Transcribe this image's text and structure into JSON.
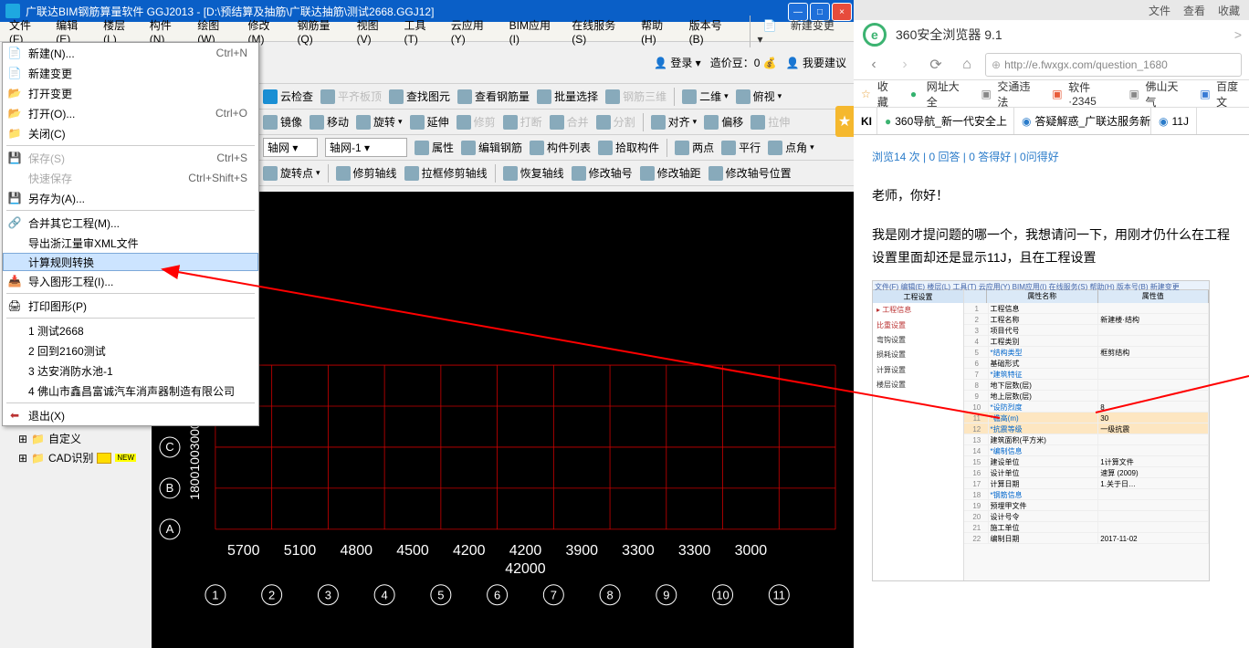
{
  "app": {
    "title": "广联达BIM钢筋算量软件 GGJ2013 - [D:\\预结算及抽筋\\广联达抽筋\\测试2668.GGJ12]",
    "title_icon_color": "#1ea8e0"
  },
  "menubar": {
    "items": [
      "文件(F)",
      "编辑(E)",
      "楼层(L)",
      "构件(N)",
      "绘图(W)",
      "修改(M)",
      "钢筋量(Q)",
      "视图(V)",
      "工具(T)",
      "云应用(Y)",
      "BIM应用(I)",
      "在线服务(S)",
      "帮助(H)",
      "版本号(B)"
    ],
    "new_change_btn": "新建变更"
  },
  "file_menu": {
    "items": [
      {
        "label": "新建(N)...",
        "shortcut": "Ctrl+N",
        "icon": "📄",
        "icon_color": "#4a7bc0"
      },
      {
        "label": "新建变更",
        "shortcut": "",
        "icon": "📄",
        "icon_color": "#4a7bc0"
      },
      {
        "label": "打开变更",
        "shortcut": "",
        "icon": "📂",
        "icon_color": "#e6b85c"
      },
      {
        "label": "打开(O)...",
        "shortcut": "Ctrl+O",
        "icon": "📂",
        "icon_color": "#e6b85c"
      },
      {
        "label": "关闭(C)",
        "shortcut": "",
        "icon": "📁",
        "icon_color": "#e6b85c"
      },
      {
        "sep": true
      },
      {
        "label": "保存(S)",
        "shortcut": "Ctrl+S",
        "icon": "💾",
        "disabled": true
      },
      {
        "label": "快速保存",
        "shortcut": "Ctrl+Shift+S",
        "icon": "",
        "disabled": true
      },
      {
        "label": "另存为(A)...",
        "shortcut": "",
        "icon": "💾",
        "icon_color": "#4a7bc0"
      },
      {
        "sep": true
      },
      {
        "label": "合并其它工程(M)...",
        "shortcut": "",
        "icon": "🔗"
      },
      {
        "label": "导出浙江量审XML文件",
        "shortcut": "",
        "icon": ""
      },
      {
        "label": "计算规则转换",
        "shortcut": "",
        "icon": "",
        "highlighted": true
      },
      {
        "label": "导入图形工程(I)...",
        "shortcut": "",
        "icon": "📥",
        "icon_color": "#3a9b3a"
      },
      {
        "sep": true
      },
      {
        "label": "打印图形(P)",
        "shortcut": "",
        "icon": "🖨"
      },
      {
        "sep": true
      },
      {
        "label": "1 测试2668",
        "shortcut": "",
        "icon": ""
      },
      {
        "label": "2 回到2160测试",
        "shortcut": "",
        "icon": ""
      },
      {
        "label": "3 达安消防水池-1",
        "shortcut": "",
        "icon": ""
      },
      {
        "label": "4 佛山市鑫昌富诚汽车消声器制造有限公司",
        "shortcut": "",
        "icon": ""
      },
      {
        "sep": true
      },
      {
        "label": "退出(X)",
        "shortcut": "",
        "icon": "⬅",
        "icon_color": "#b33"
      }
    ]
  },
  "toolbar_top_right": {
    "login": "登录",
    "login_arrow": "▾",
    "zaodou": "造价豆：0",
    "suggestion": "我要建议",
    "bean_icon": "💰",
    "person_icon": "👤",
    "suggest_icon": "👤"
  },
  "toolbar_rows": [
    [
      {
        "label": "云检查",
        "icon_color": "#1a8fd4"
      },
      {
        "label": "平齐板顶",
        "disabled": true
      },
      {
        "label": "查找图元"
      },
      {
        "label": "查看钢筋量"
      },
      {
        "label": "批量选择"
      },
      {
        "label": "钢筋三维",
        "disabled": true
      },
      {
        "sep": true
      },
      {
        "label": "二维",
        "dropdown": true
      },
      {
        "label": "俯视",
        "dropdown": true
      }
    ],
    [
      {
        "label": "镜像"
      },
      {
        "label": "移动"
      },
      {
        "label": "旋转",
        "dropdown": true
      },
      {
        "label": "延伸"
      },
      {
        "label": "修剪",
        "disabled": true
      },
      {
        "label": "打断",
        "disabled": true
      },
      {
        "label": "合并",
        "disabled": true
      },
      {
        "label": "分割",
        "disabled": true
      },
      {
        "sep": true
      },
      {
        "label": "对齐",
        "dropdown": true
      },
      {
        "label": "偏移"
      },
      {
        "label": "拉伸",
        "disabled": true
      }
    ],
    [
      {
        "input": "轴网",
        "width": 60
      },
      {
        "input": "轴网-1",
        "width": 90
      },
      {
        "label": "属性"
      },
      {
        "label": "编辑钢筋"
      },
      {
        "label": "构件列表"
      },
      {
        "label": "拾取构件"
      },
      {
        "sep": true
      },
      {
        "label": "两点"
      },
      {
        "label": "平行"
      },
      {
        "label": "点角",
        "dropdown": true
      }
    ],
    [
      {
        "label": "旋转点",
        "dropdown": true
      },
      {
        "sep": true
      },
      {
        "label": "修剪轴线"
      },
      {
        "label": "拉框修剪轴线"
      },
      {
        "sep": true
      },
      {
        "label": "恢复轴线"
      },
      {
        "label": "修改轴号"
      },
      {
        "label": "修改轴距"
      },
      {
        "label": "修改轴号位置"
      }
    ]
  ],
  "left_tree": {
    "items": [
      {
        "label": "自定义",
        "icon": "📁"
      },
      {
        "label": "CAD识别",
        "icon": "📁",
        "badge": "NEW"
      }
    ]
  },
  "cad": {
    "grid_color": "#cc0000",
    "axis_text_color": "#ffffff",
    "x_values": [
      "5700",
      "5100",
      "4800",
      "4500",
      "4200",
      "4200",
      "3900",
      "3300",
      "3300",
      "3000"
    ],
    "total_x": "42000",
    "axis_bubbles_x": [
      "1",
      "2",
      "3",
      "4",
      "5",
      "6",
      "7",
      "8",
      "9",
      "10",
      "11"
    ],
    "axis_bubbles_y": [
      "A",
      "B",
      "C"
    ],
    "y_dim_text": "180010030001170"
  },
  "browser": {
    "app_name": "360安全浏览器 9.1",
    "top_right": [
      "文件",
      "查看",
      "收藏"
    ],
    "url": "http://e.fwxgx.com/question_1680",
    "bookmarks": [
      {
        "label": "收藏",
        "icon": "☆",
        "color": "#e8a33d"
      },
      {
        "label": "网址大全",
        "icon": "●",
        "color": "#33b26e"
      },
      {
        "label": "交通违法",
        "icon": "▣",
        "color": "#888"
      },
      {
        "label": "软件·2345",
        "icon": "▣",
        "color": "#e85c3a"
      },
      {
        "label": "佛山天气",
        "icon": "▣",
        "color": "#888"
      },
      {
        "label": "百度文",
        "icon": "▣",
        "color": "#3a7bd5"
      }
    ],
    "tabs": [
      {
        "label": "360导航_新一代安全上",
        "icon": "●",
        "icon_color": "#3cb371"
      },
      {
        "label": "答疑解惑_广联达服务新",
        "icon": "◉",
        "icon_color": "#2b7cca",
        "close": "×"
      },
      {
        "label": "11J",
        "icon": "◉",
        "icon_color": "#2b7cca"
      }
    ],
    "stats_text": "浏览14 次 | 0 回答 | 0 答得好 | 0问得好",
    "greeting": "老师，你好！",
    "body": "我是刚才提问题的哪一个，我想请问一下，用刚才仍什么在工程设置里面却还是显示11J，且在工程设置"
  },
  "thumb": {
    "menubar": "文件(F) 编辑(E) 楼层(L) 工具(T) 云应用(Y) BIM应用(I) 在线服务(S) 帮助(H) 版本号(B)  新建变更",
    "left_header": "工程设置",
    "left_items": [
      "工程信息",
      "比重设置",
      "弯钩设置",
      "损耗设置",
      "计算设置",
      "楼层设置"
    ],
    "col_headers": [
      "属性名称",
      "属性值"
    ],
    "rows": [
      [
        "1",
        "工程信息",
        ""
      ],
      [
        "2",
        "工程名称",
        "新建楼·结构"
      ],
      [
        "3",
        "项目代号",
        ""
      ],
      [
        "4",
        "工程类别",
        ""
      ],
      [
        "5",
        "*结构类型",
        "框剪结构"
      ],
      [
        "6",
        "基础形式",
        ""
      ],
      [
        "7",
        "*建筑特征",
        ""
      ],
      [
        "8",
        "地下层数(层)",
        ""
      ],
      [
        "9",
        "地上层数(层)",
        ""
      ],
      [
        "10",
        "*设防烈度",
        "8"
      ],
      [
        "11",
        "*檐高(m)",
        "30"
      ],
      [
        "12",
        "*抗震等级",
        "一级抗震"
      ],
      [
        "13",
        "建筑面积(平方米)",
        ""
      ],
      [
        "14",
        "*编制信息",
        ""
      ],
      [
        "15",
        "建设单位",
        "1计算文件"
      ],
      [
        "16",
        "设计单位",
        "速算 (2009)"
      ],
      [
        "17",
        "计算日期",
        "1.关于日…"
      ],
      [
        "18",
        "*钢筋信息",
        ""
      ],
      [
        "19",
        "预埋甲文件",
        ""
      ],
      [
        "20",
        "设计号令",
        ""
      ],
      [
        "21",
        "施工单位",
        ""
      ],
      [
        "22",
        "编制日期",
        "2017-11-02"
      ]
    ]
  },
  "colors": {
    "titlebar": "#0a5fc7",
    "menu_highlight": "#cce4ff",
    "link": "#2b7cca",
    "red_line": "#ff0000"
  }
}
